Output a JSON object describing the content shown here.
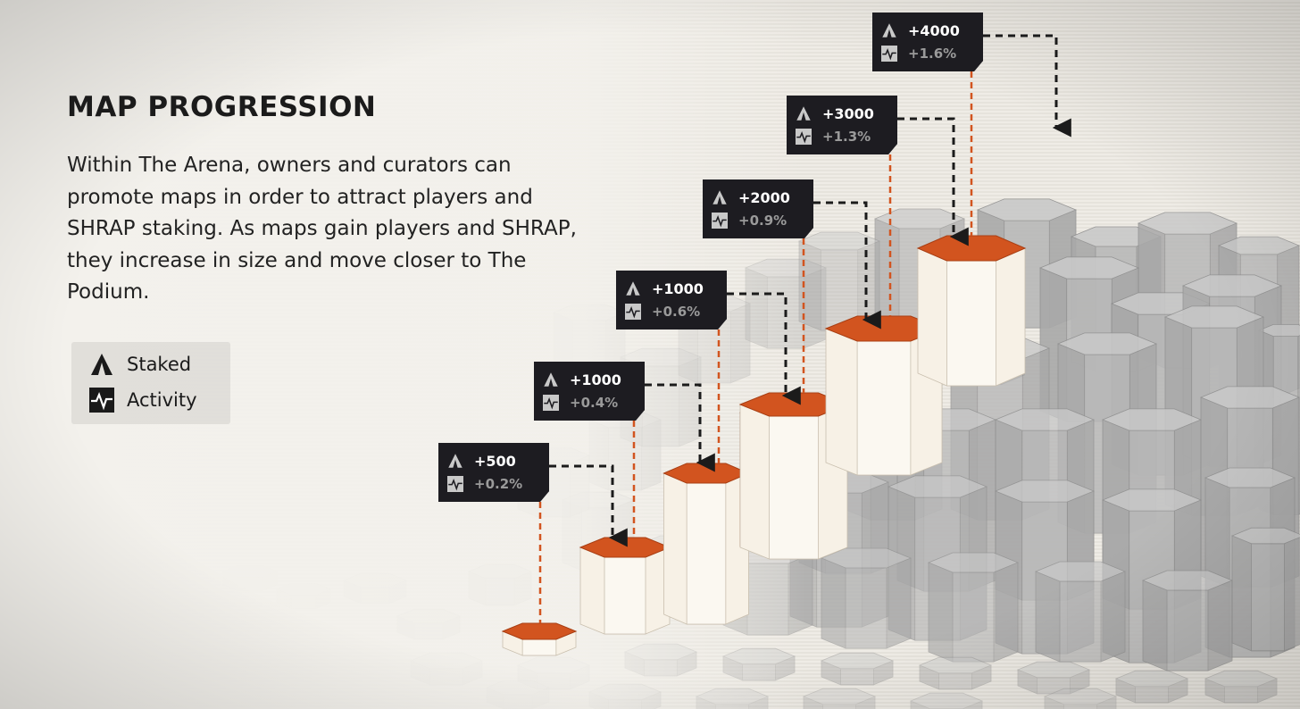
{
  "title": "MAP PROGRESSION",
  "description": "Within The Arena, owners and curators can promote maps in order to attract players and SHRAP staking. As maps gain players and SHRAP, they increase in size and move closer to The Podium.",
  "legend": {
    "staked_label": "Staked",
    "activity_label": "Activity",
    "staked_icon": "staked-icon",
    "activity_icon": "activity-icon"
  },
  "steps": [
    {
      "staked": "+500",
      "activity": "+0.2%"
    },
    {
      "staked": "+1000",
      "activity": "+0.4%"
    },
    {
      "staked": "+1000",
      "activity": "+0.6%"
    },
    {
      "staked": "+2000",
      "activity": "+0.9%"
    },
    {
      "staked": "+3000",
      "activity": "+1.3%"
    },
    {
      "staked": "+4000",
      "activity": "+1.6%"
    }
  ],
  "colors": {
    "accent": "#d2541f",
    "card_bg": "#1d1c21",
    "hex_grey": "#a8a8a8",
    "hex_white": "#f7f3ec"
  }
}
